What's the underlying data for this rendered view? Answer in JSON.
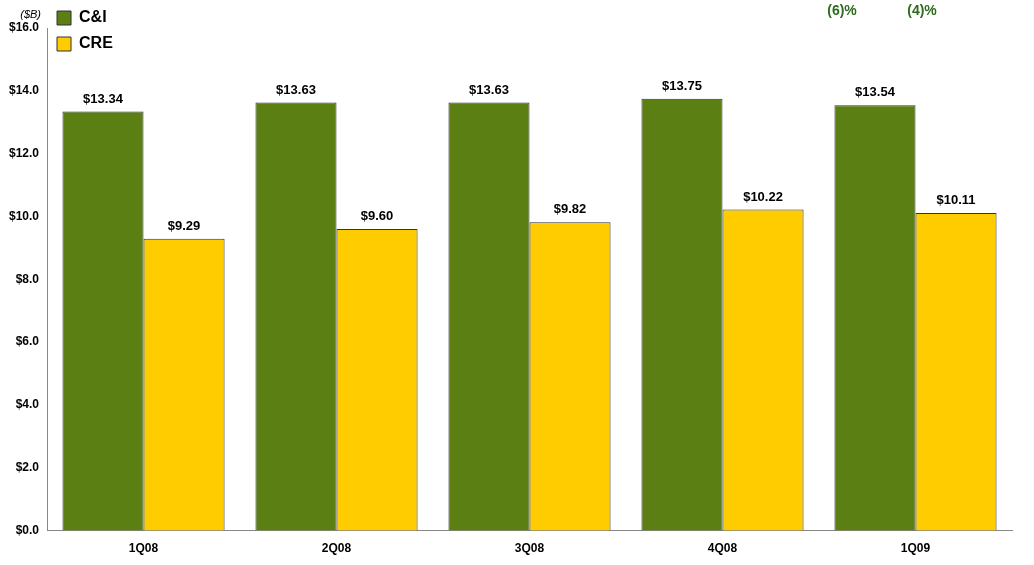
{
  "chart_data": {
    "type": "bar",
    "ylabel": "($B)",
    "categories": [
      "1Q08",
      "2Q08",
      "3Q08",
      "4Q08",
      "1Q09"
    ],
    "series": [
      {
        "name": "C&I",
        "color": "#5b7f12",
        "values": [
          13.34,
          13.63,
          13.63,
          13.75,
          13.54
        ],
        "value_labels": [
          "$13.34",
          "$13.63",
          "$13.63",
          "$13.75",
          "$13.54"
        ]
      },
      {
        "name": "CRE",
        "color": "#ffcc00",
        "values": [
          9.29,
          9.6,
          9.82,
          10.22,
          10.11
        ],
        "value_labels": [
          "$9.29",
          "$9.60",
          "$9.82",
          "$10.22",
          "$10.11"
        ]
      }
    ],
    "ylim": [
      0,
      16
    ],
    "yticks": [
      {
        "value": 0,
        "label": "$0.0"
      },
      {
        "value": 2,
        "label": "$2.0"
      },
      {
        "value": 4,
        "label": "$4.0"
      },
      {
        "value": 6,
        "label": "$6.0"
      },
      {
        "value": 8,
        "label": "$8.0"
      },
      {
        "value": 10,
        "label": "$10.0"
      },
      {
        "value": 12,
        "label": "$12.0"
      },
      {
        "value": 14,
        "label": "$14.0"
      },
      {
        "value": 16,
        "label": "$16.0"
      }
    ],
    "grid": false,
    "legend": "top left",
    "annotations": [
      "(6)%",
      "(4)%"
    ]
  }
}
